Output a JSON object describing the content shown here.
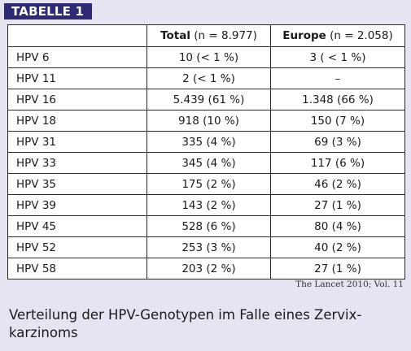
{
  "badge": "TABELLE 1",
  "table": {
    "header": {
      "total_bold": "Total",
      "total_rest": " (n = 8.977)",
      "europe_bold": "Europe",
      "europe_rest": " (n = 2.058)"
    },
    "rows": [
      {
        "name": "HPV 6",
        "total": "10 (< 1 %)",
        "europe": "3 ( < 1 %)"
      },
      {
        "name": "HPV 11",
        "total": "2 (< 1 %)",
        "europe": "–"
      },
      {
        "name": "HPV 16",
        "total": "5.439 (61 %)",
        "europe": "1.348 (66 %)"
      },
      {
        "name": "HPV 18",
        "total": "918 (10 %)",
        "europe": "150 (7 %)"
      },
      {
        "name": "HPV 31",
        "total": "335 (4 %)",
        "europe": "69 (3 %)"
      },
      {
        "name": "HPV 33",
        "total": "345 (4 %)",
        "europe": "117 (6 %)"
      },
      {
        "name": "HPV 35",
        "total": "175 (2 %)",
        "europe": "46 (2 %)"
      },
      {
        "name": "HPV 39",
        "total": "143 (2 %)",
        "europe": "27 (1 %)"
      },
      {
        "name": "HPV 45",
        "total": "528 (6 %)",
        "europe": "80 (4 %)"
      },
      {
        "name": "HPV 52",
        "total": "253 (3 %)",
        "europe": "40 (2 %)"
      },
      {
        "name": "HPV 58",
        "total": "203 (2 %)",
        "europe": "27 (1 %)"
      }
    ]
  },
  "source": "The Lancet 2010; Vol. 11",
  "caption": "Verteilung der HPV-Genotypen im Falle eines Zervix-karzinoms",
  "colors": {
    "badge_bg": "#2f2a74",
    "frame_bg": "#e6e4f1",
    "table_bg": "#ffffff"
  }
}
